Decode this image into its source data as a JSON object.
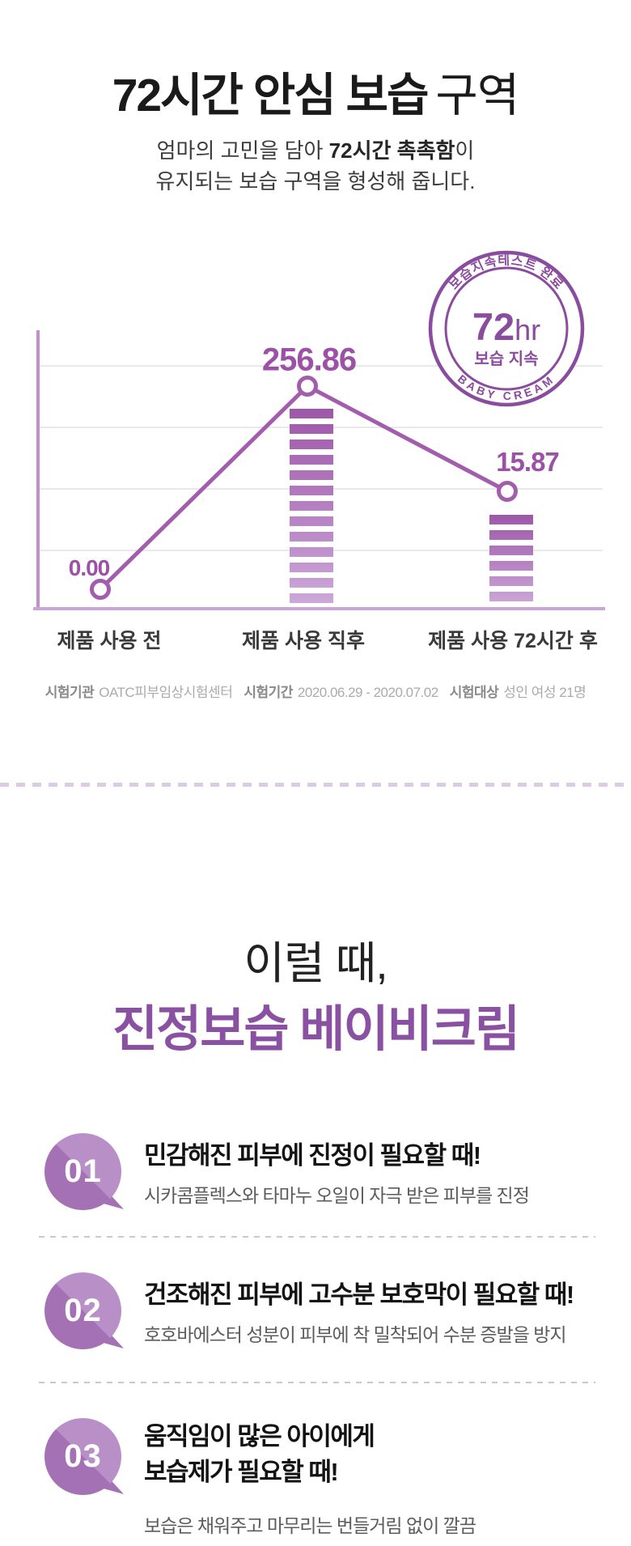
{
  "header": {
    "title_bold": "72시간 안심 보습",
    "title_light": "구역",
    "subtitle_line1_pre": "엄마의 고민을 담아 ",
    "subtitle_line1_bold": "72시간 촉촉함",
    "subtitle_line1_post": "이",
    "subtitle_line2": "유지되는 보습 구역을 형성해 줍니다."
  },
  "seal": {
    "arc_top": "보습지속테스트 완료",
    "big": "72",
    "unit": "hr",
    "caption": "보습 지속",
    "arc_bottom": "BABY CREAM"
  },
  "chart_data": {
    "type": "line",
    "categories": [
      "제품 사용 전",
      "제품 사용 직후",
      "제품 사용 72시간 후"
    ],
    "values": [
      0.0,
      256.86,
      15.87
    ],
    "value_labels": [
      "0.00",
      "256.86",
      "15.87"
    ],
    "grid": true,
    "legend_position": "none",
    "markers": "open-circle",
    "striped_bars_under_points": [
      1,
      2
    ],
    "xlabel": "",
    "ylabel": "",
    "title": ""
  },
  "footnote": {
    "items": [
      {
        "label": "시험기관",
        "value": "OATC피부임상시험센터"
      },
      {
        "label": "시험기간",
        "value": "2020.06.29 - 2020.07.02"
      },
      {
        "label": "시험대상",
        "value": "성인 여성 21명"
      }
    ]
  },
  "section2": {
    "heading_light": "이럴 때,",
    "heading_bold": "진정보습 베이비크림"
  },
  "items": [
    {
      "num": "01",
      "title_lines": [
        "민감해진 피부에 진정이 필요할 때!"
      ],
      "desc": "시카콤플렉스와 타마누 오일이 자극 받은 피부를 진정"
    },
    {
      "num": "02",
      "title_lines": [
        "건조해진 피부에 고수분 보호막이 필요할 때!"
      ],
      "desc": "호호바에스터 성분이 피부에 착 밀착되어 수분 증발을 방지"
    },
    {
      "num": "03",
      "title_lines": [
        "움직임이 많은 아이에게",
        "보습제가 필요할 때!"
      ],
      "desc": "보습은 채워주고 마무리는 번들거림 없이 깔끔"
    }
  ],
  "colors": {
    "accent_purple": "#8a4c9e",
    "chart_line": "#a25dac",
    "value_label": "#9c51a6",
    "axis_light_purple": "#c18fce",
    "baseline_light_purple": "#caa5d7",
    "bar_gradient_top": "#9d57a8",
    "bar_gradient_bottom": "#cda9da",
    "divider_lavender": "#dccae6",
    "item_divider_gray": "#c9c9c9",
    "bubble_dark": "#a471b5",
    "bubble_light": "#b98fc8",
    "heading2_purple": "#8a50a2"
  }
}
